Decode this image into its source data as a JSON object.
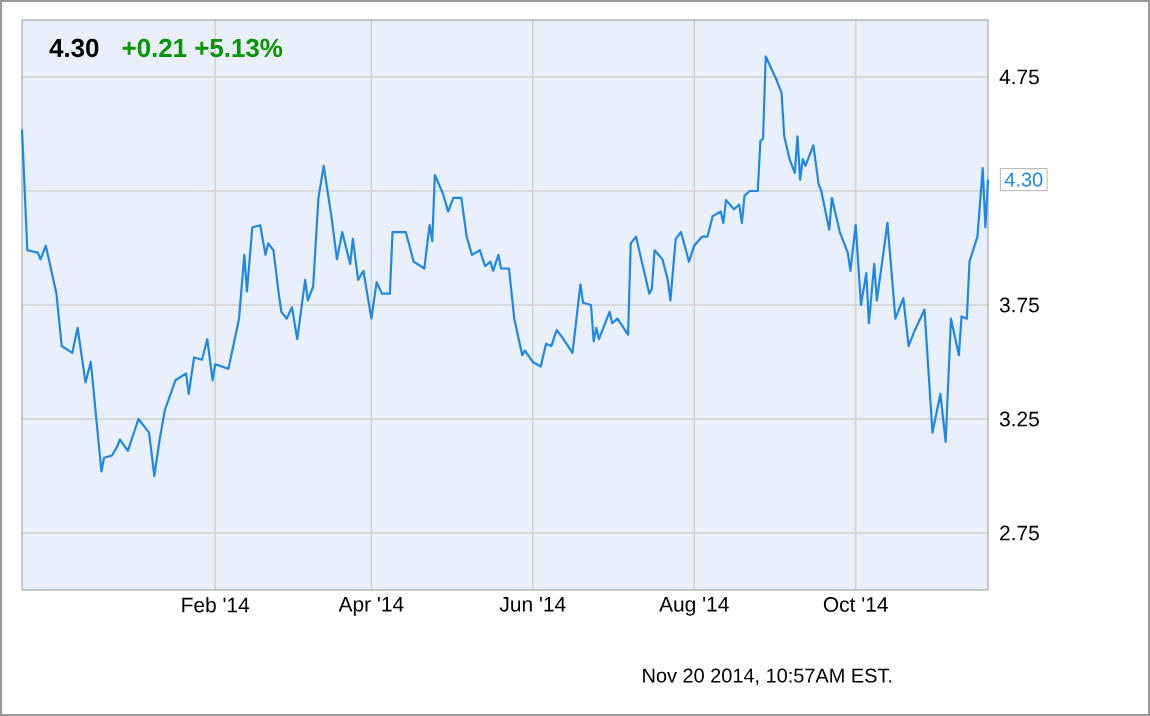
{
  "chart_data": {
    "type": "line",
    "title": "4.30",
    "subtitle": "+0.21  +5.13%",
    "x": [
      "2013-11-20",
      "2013-11-22",
      "2013-11-26",
      "2013-11-27",
      "2013-11-29",
      "2013-12-03",
      "2013-12-05",
      "2013-12-09",
      "2013-12-11",
      "2013-12-14",
      "2013-12-16",
      "2013-12-20",
      "2013-12-21",
      "2013-12-24",
      "2013-12-26",
      "2013-12-27",
      "2013-12-30",
      "2014-01-03",
      "2014-01-07",
      "2014-01-09",
      "2014-01-11",
      "2014-01-13",
      "2014-01-17",
      "2014-01-21",
      "2014-01-22",
      "2014-01-24",
      "2014-01-27",
      "2014-01-29",
      "2014-01-31",
      "2014-02-01",
      "2014-02-06",
      "2014-02-10",
      "2014-02-12",
      "2014-02-13",
      "2014-02-15",
      "2014-02-18",
      "2014-02-20",
      "2014-02-21",
      "2014-02-23",
      "2014-02-25",
      "2014-02-26",
      "2014-02-28",
      "2014-03-02",
      "2014-03-04",
      "2014-03-07",
      "2014-03-08",
      "2014-03-10",
      "2014-03-12",
      "2014-03-14",
      "2014-03-17",
      "2014-03-19",
      "2014-03-21",
      "2014-03-24",
      "2014-03-25",
      "2014-03-27",
      "2014-03-29",
      "2014-04-01",
      "2014-04-03",
      "2014-04-05",
      "2014-04-08",
      "2014-04-09",
      "2014-04-14",
      "2014-04-17",
      "2014-04-21",
      "2014-04-23",
      "2014-04-24",
      "2014-04-25",
      "2014-04-28",
      "2014-04-30",
      "2014-05-02",
      "2014-05-05",
      "2014-05-07",
      "2014-05-09",
      "2014-05-12",
      "2014-05-14",
      "2014-05-16",
      "2014-05-17",
      "2014-05-19",
      "2014-05-20",
      "2014-05-23",
      "2014-05-25",
      "2014-05-28",
      "2014-05-29",
      "2014-06-01",
      "2014-06-04",
      "2014-06-06",
      "2014-06-08",
      "2014-06-10",
      "2014-06-12",
      "2014-06-16",
      "2014-06-17",
      "2014-06-19",
      "2014-06-20",
      "2014-06-23",
      "2014-06-24",
      "2014-06-25",
      "2014-06-26",
      "2014-06-30",
      "2014-07-01",
      "2014-07-03",
      "2014-07-07",
      "2014-07-08",
      "2014-07-10",
      "2014-07-12",
      "2014-07-15",
      "2014-07-16",
      "2014-07-17",
      "2014-07-20",
      "2014-07-22",
      "2014-07-23",
      "2014-07-25",
      "2014-07-27",
      "2014-07-30",
      "2014-08-01",
      "2014-08-04",
      "2014-08-06",
      "2014-08-08",
      "2014-08-11",
      "2014-08-12",
      "2014-08-13",
      "2014-08-16",
      "2014-08-18",
      "2014-08-19",
      "2014-08-20",
      "2014-08-22",
      "2014-08-25",
      "2014-08-26",
      "2014-08-27",
      "2014-08-28",
      "2014-09-01",
      "2014-09-03",
      "2014-09-04",
      "2014-09-06",
      "2014-09-08",
      "2014-09-09",
      "2014-09-10",
      "2014-09-11",
      "2014-09-12",
      "2014-09-15",
      "2014-09-17",
      "2014-09-18",
      "2014-09-21",
      "2014-09-22",
      "2014-09-25",
      "2014-09-28",
      "2014-09-29",
      "2014-10-01",
      "2014-10-03",
      "2014-10-05",
      "2014-10-06",
      "2014-10-08",
      "2014-10-09",
      "2014-10-13",
      "2014-10-16",
      "2014-10-19",
      "2014-10-21",
      "2014-10-23",
      "2014-10-27",
      "2014-10-30",
      "2014-11-02",
      "2014-11-04",
      "2014-11-06",
      "2014-11-09",
      "2014-11-10",
      "2014-11-12",
      "2014-11-13",
      "2014-11-16",
      "2014-11-18",
      "2014-11-19",
      "2014-11-20"
    ],
    "series": [
      {
        "color": "#1e88e5",
        "values": [
          4.52,
          3.99,
          3.98,
          3.95,
          4.01,
          3.8,
          3.57,
          3.54,
          3.65,
          3.41,
          3.5,
          3.02,
          3.08,
          3.09,
          3.13,
          3.16,
          3.11,
          3.25,
          3.19,
          3.0,
          3.16,
          3.29,
          3.42,
          3.45,
          3.36,
          3.52,
          3.51,
          3.6,
          3.42,
          3.49,
          3.47,
          3.69,
          3.97,
          3.81,
          4.09,
          4.1,
          3.97,
          4.02,
          3.99,
          3.8,
          3.72,
          3.69,
          3.74,
          3.6,
          3.86,
          3.77,
          3.83,
          4.22,
          4.36,
          4.13,
          3.95,
          4.07,
          3.93,
          4.04,
          3.86,
          3.9,
          3.69,
          3.85,
          3.8,
          3.8,
          4.07,
          4.07,
          3.94,
          3.91,
          4.1,
          4.03,
          4.32,
          4.24,
          4.16,
          4.22,
          4.22,
          4.05,
          3.97,
          3.99,
          3.92,
          3.94,
          3.9,
          3.97,
          3.91,
          3.91,
          3.69,
          3.53,
          3.55,
          3.5,
          3.48,
          3.58,
          3.57,
          3.64,
          3.61,
          3.54,
          3.64,
          3.84,
          3.76,
          3.75,
          3.59,
          3.65,
          3.6,
          3.72,
          3.67,
          3.69,
          3.62,
          4.02,
          4.05,
          3.95,
          3.8,
          3.82,
          3.99,
          3.95,
          3.86,
          3.77,
          4.04,
          4.07,
          3.94,
          4.01,
          4.05,
          4.05,
          4.14,
          4.16,
          4.11,
          4.21,
          4.17,
          4.19,
          4.11,
          4.23,
          4.25,
          4.25,
          4.47,
          4.48,
          4.84,
          4.74,
          4.68,
          4.49,
          4.39,
          4.33,
          4.49,
          4.3,
          4.39,
          4.36,
          4.45,
          4.28,
          4.25,
          4.08,
          4.22,
          4.07,
          3.98,
          3.9,
          4.1,
          3.75,
          3.89,
          3.67,
          3.93,
          3.77,
          4.11,
          3.69,
          3.78,
          3.57,
          3.63,
          3.73,
          3.19,
          3.36,
          3.15,
          3.69,
          3.53,
          3.7,
          3.69,
          3.94,
          4.05,
          4.35,
          4.09,
          4.3
        ]
      }
    ],
    "xlim": [
      "2013-11-20",
      "2014-11-20"
    ],
    "xticks": [
      {
        "value": "2014-02-01",
        "label": "Feb '14"
      },
      {
        "value": "2014-04-01",
        "label": "Apr '14"
      },
      {
        "value": "2014-06-01",
        "label": "Jun '14"
      },
      {
        "value": "2014-08-01",
        "label": "Aug '14"
      },
      {
        "value": "2014-10-01",
        "label": "Oct '14"
      }
    ],
    "ylim": [
      2.5,
      5.0
    ],
    "yticks": [
      2.75,
      3.25,
      3.75,
      {
        "value": 4.25,
        "label": null
      },
      4.75
    ],
    "grid": true,
    "annotations": [
      {
        "text": "4.30",
        "x": "2014-11-20",
        "y": 4.3
      },
      "Nov 20 2014, 10:57AM EST."
    ]
  }
}
